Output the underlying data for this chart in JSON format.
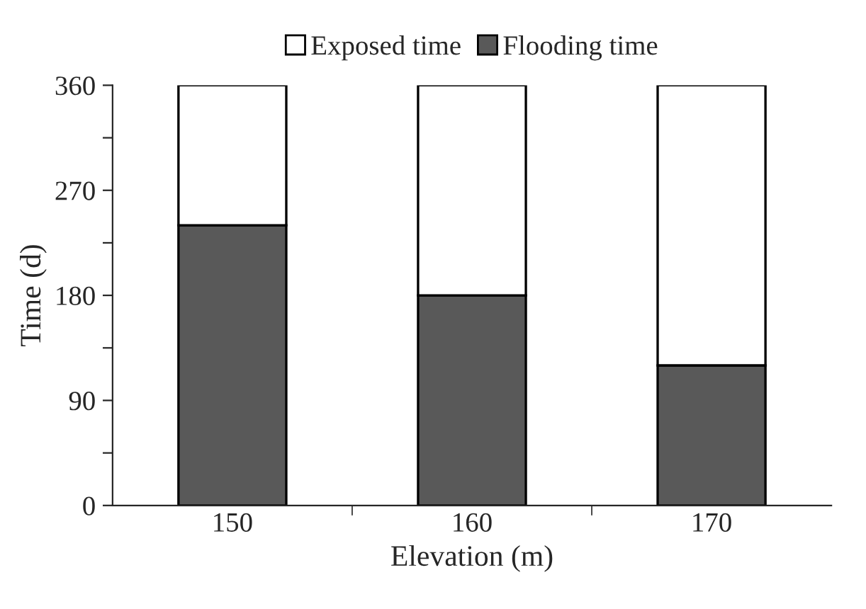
{
  "chart_data": {
    "type": "bar",
    "stacked": true,
    "xlabel": "Elevation (m)",
    "ylabel": "Time (d)",
    "categories": [
      "150",
      "160",
      "170"
    ],
    "series": [
      {
        "name": "Flooding time",
        "color": "#595959",
        "values": [
          240,
          180,
          120
        ]
      },
      {
        "name": "Exposed time",
        "color": "#ffffff",
        "values": [
          120,
          180,
          240
        ]
      }
    ],
    "ylim": [
      0,
      360
    ],
    "yticks": [
      0,
      {
        "value": 45,
        "label": null
      },
      90,
      {
        "value": 135,
        "label": null
      },
      180,
      {
        "value": 225,
        "label": null
      },
      270,
      {
        "value": 315,
        "label": null
      },
      360
    ],
    "legend": "top",
    "grid": false
  }
}
